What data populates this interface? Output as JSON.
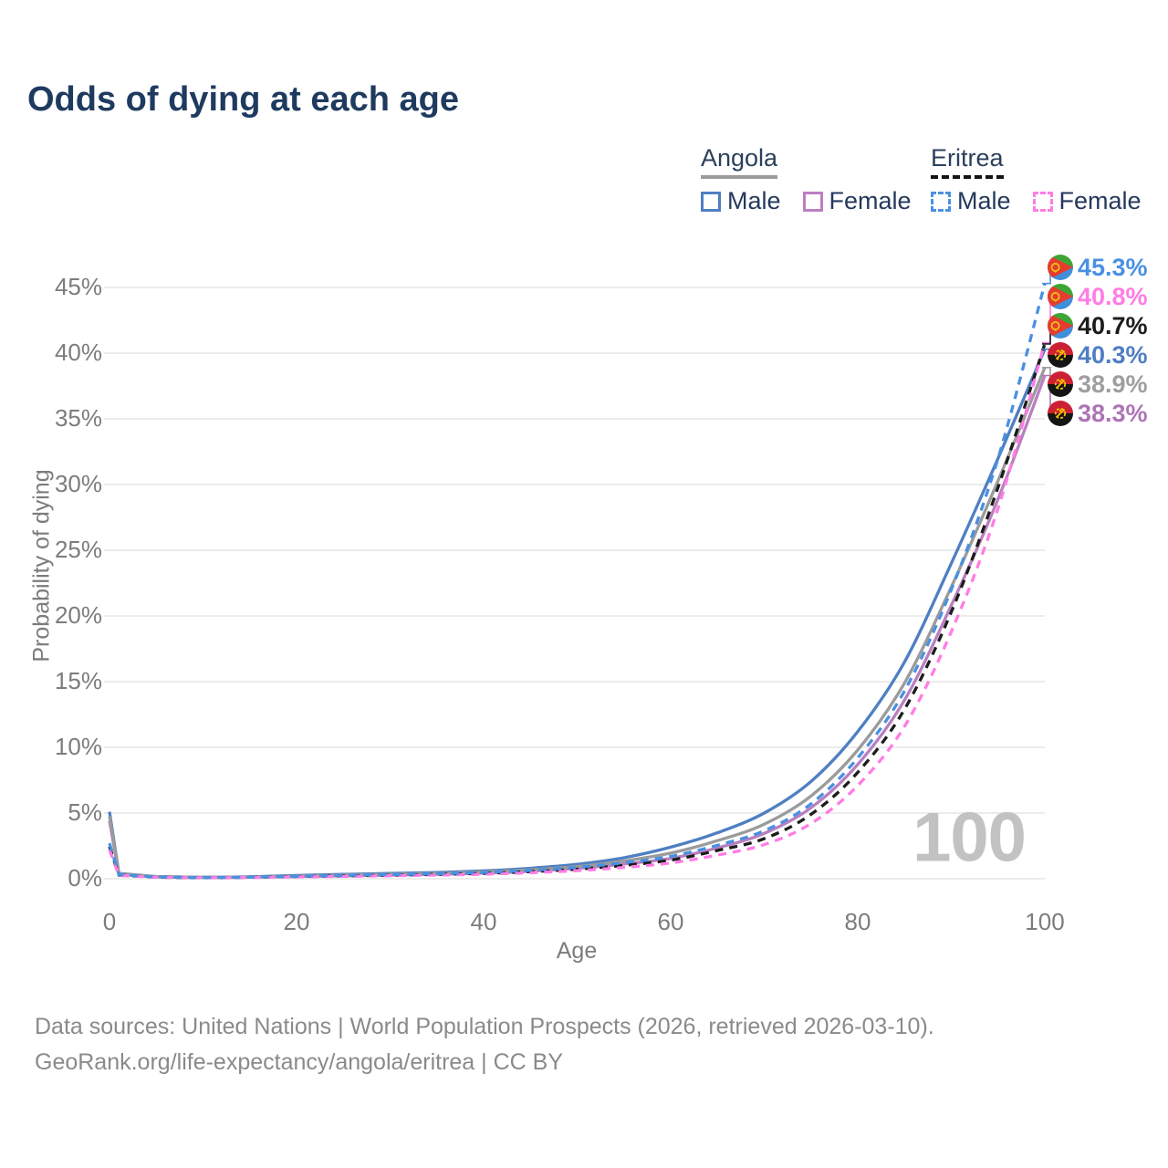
{
  "title": "Odds of dying at each age",
  "legend": {
    "groups": [
      {
        "country": "Angola",
        "line_style": "solid",
        "items": [
          {
            "label": "Male",
            "color": "#4f7fc2"
          },
          {
            "label": "Female",
            "color": "#bd7ec0"
          }
        ]
      },
      {
        "country": "Eritrea",
        "line_style": "dashed",
        "items": [
          {
            "label": "Male",
            "color": "#4a90e2"
          },
          {
            "label": "Female",
            "color": "#ff7ce4"
          }
        ]
      }
    ]
  },
  "chart_data": {
    "type": "line",
    "title": "Odds of dying at each age",
    "xlabel": "Age",
    "ylabel": "Probability of dying",
    "xlim": [
      0,
      100
    ],
    "ylim_percent": [
      0,
      45
    ],
    "grid": "horizontal",
    "legend_position": "top-right",
    "hover_age_watermark": "100",
    "x_ticks": [
      {
        "v": 0,
        "label": "0"
      },
      {
        "v": 20,
        "label": "20"
      },
      {
        "v": 40,
        "label": "40"
      },
      {
        "v": 60,
        "label": "60"
      },
      {
        "v": 80,
        "label": "80"
      },
      {
        "v": 100,
        "label": "100"
      }
    ],
    "y_ticks": [
      {
        "v": 0,
        "label": "0%"
      },
      {
        "v": 5,
        "label": "5%"
      },
      {
        "v": 10,
        "label": "10%"
      },
      {
        "v": 15,
        "label": "15%"
      },
      {
        "v": 20,
        "label": "20%"
      },
      {
        "v": 25,
        "label": "25%"
      },
      {
        "v": 30,
        "label": "30%"
      },
      {
        "v": 35,
        "label": "35%"
      },
      {
        "v": 40,
        "label": "40%"
      },
      {
        "v": 45,
        "label": "45%"
      }
    ],
    "ages": [
      0,
      1,
      5,
      10,
      15,
      20,
      25,
      30,
      35,
      40,
      45,
      50,
      55,
      60,
      65,
      70,
      75,
      80,
      85,
      90,
      95,
      100
    ],
    "series": [
      {
        "name": "Angola Male",
        "country": "Angola",
        "sex": "Male",
        "color": "#4f7fc2",
        "dash": false,
        "end_value_pct": 40.3,
        "values": [
          5.1,
          0.4,
          0.17,
          0.12,
          0.15,
          0.25,
          0.33,
          0.4,
          0.48,
          0.6,
          0.8,
          1.1,
          1.6,
          2.4,
          3.5,
          5.0,
          7.4,
          11.2,
          16.5,
          24.0,
          32.0,
          40.3
        ]
      },
      {
        "name": "Angola Female",
        "country": "Angola",
        "sex": "Female",
        "color": "#b97fc0",
        "dash": false,
        "end_value_pct": 38.3,
        "values": [
          4.4,
          0.34,
          0.15,
          0.1,
          0.12,
          0.17,
          0.22,
          0.27,
          0.34,
          0.43,
          0.57,
          0.79,
          1.12,
          1.55,
          2.35,
          3.45,
          5.4,
          8.7,
          13.6,
          20.8,
          28.9,
          38.3
        ]
      },
      {
        "name": "Angola Both sexes",
        "country": "Angola",
        "sex": "Both",
        "color": "#9b9b9b",
        "dash": false,
        "end_value_pct": 38.9,
        "values": [
          4.75,
          0.37,
          0.16,
          0.11,
          0.13,
          0.21,
          0.28,
          0.34,
          0.41,
          0.51,
          0.68,
          0.93,
          1.35,
          1.95,
          2.9,
          4.15,
          6.3,
          9.8,
          14.9,
          22.2,
          30.3,
          38.9
        ]
      },
      {
        "name": "Eritrea Both sexes",
        "country": "Eritrea",
        "sex": "Both",
        "color": "#1c1c1c",
        "dash": true,
        "end_value_pct": 40.7,
        "values": [
          2.45,
          0.28,
          0.12,
          0.08,
          0.11,
          0.17,
          0.22,
          0.27,
          0.33,
          0.41,
          0.54,
          0.73,
          1.02,
          1.42,
          2.15,
          3.05,
          4.9,
          8.1,
          12.9,
          20.3,
          29.8,
          40.7
        ]
      },
      {
        "name": "Eritrea Female",
        "country": "Eritrea",
        "sex": "Female",
        "color": "#ff7ce4",
        "dash": true,
        "end_value_pct": 40.8,
        "values": [
          2.2,
          0.25,
          0.11,
          0.08,
          0.1,
          0.14,
          0.18,
          0.23,
          0.28,
          0.35,
          0.46,
          0.62,
          0.86,
          1.2,
          1.8,
          2.6,
          4.2,
          7.1,
          11.6,
          18.8,
          28.2,
          40.8
        ]
      },
      {
        "name": "Eritrea Male",
        "country": "Eritrea",
        "sex": "Male",
        "color": "#4a90e2",
        "dash": true,
        "end_value_pct": 45.3,
        "values": [
          2.7,
          0.31,
          0.13,
          0.09,
          0.12,
          0.19,
          0.26,
          0.32,
          0.39,
          0.48,
          0.64,
          0.87,
          1.22,
          1.7,
          2.55,
          3.65,
          5.7,
          9.2,
          14.3,
          22.0,
          32.0,
          45.3
        ]
      }
    ],
    "end_labels": [
      {
        "value": "45.3%",
        "flag": "eritrea",
        "color": "#4a90e2",
        "series": "Eritrea Male"
      },
      {
        "value": "40.8%",
        "flag": "eritrea",
        "color": "#ff7ce4",
        "series": "Eritrea Female"
      },
      {
        "value": "40.7%",
        "flag": "eritrea",
        "color": "#1c1c1c",
        "series": "Eritrea Both sexes"
      },
      {
        "value": "40.3%",
        "flag": "angola",
        "color": "#4f7fc2",
        "series": "Angola Male"
      },
      {
        "value": "38.9%",
        "flag": "angola",
        "color": "#9e9e9e",
        "series": "Angola Both sexes"
      },
      {
        "value": "38.3%",
        "flag": "angola",
        "color": "#ad74b5",
        "series": "Angola Female"
      }
    ],
    "colors": {
      "grid": "#ececec",
      "axis_text": "#7c7c7c",
      "watermark": "#c2c2c2",
      "title_text": "#1f3a5f"
    }
  },
  "footer": {
    "line1": "Data sources: United Nations | World Population Prospects (2026, retrieved 2026-03-10).",
    "line2": "GeoRank.org/life-expectancy/angola/eritrea | CC BY"
  }
}
